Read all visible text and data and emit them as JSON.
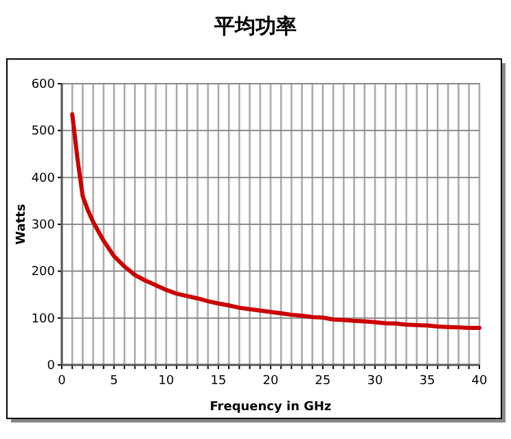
{
  "chart_data": {
    "type": "line",
    "title": "平均功率",
    "xlabel": "Frequency in GHz",
    "ylabel": "Watts",
    "x": [
      1,
      1.5,
      2,
      2.5,
      3,
      4,
      5,
      6,
      7,
      8,
      9,
      10,
      11,
      12,
      13,
      14,
      15,
      16,
      17,
      18,
      19,
      20,
      21,
      22,
      23,
      24,
      25,
      26,
      27,
      28,
      29,
      30,
      31,
      32,
      33,
      34,
      35,
      36,
      37,
      38,
      39,
      40
    ],
    "series": [
      {
        "color": "#cc0000",
        "values": [
          535,
          440,
          360,
          330,
          305,
          265,
          232,
          210,
          192,
          180,
          170,
          160,
          152,
          147,
          142,
          136,
          131,
          127,
          122,
          119,
          116,
          113,
          110,
          107,
          105,
          102,
          101,
          97,
          96,
          94,
          93,
          91,
          89,
          88,
          86,
          85,
          84,
          82,
          81,
          80,
          79,
          79
        ]
      }
    ],
    "xlim": [
      0,
      40
    ],
    "xticks": [
      0,
      {
        "value": 1,
        "label": null
      },
      {
        "value": 2,
        "label": null
      },
      {
        "value": 3,
        "label": null
      },
      {
        "value": 4,
        "label": null
      },
      5,
      {
        "value": 6,
        "label": null
      },
      {
        "value": 7,
        "label": null
      },
      {
        "value": 8,
        "label": null
      },
      {
        "value": 9,
        "label": null
      },
      10,
      {
        "value": 11,
        "label": null
      },
      {
        "value": 12,
        "label": null
      },
      {
        "value": 13,
        "label": null
      },
      {
        "value": 14,
        "label": null
      },
      15,
      {
        "value": 16,
        "label": null
      },
      {
        "value": 17,
        "label": null
      },
      {
        "value": 18,
        "label": null
      },
      {
        "value": 19,
        "label": null
      },
      20,
      {
        "value": 21,
        "label": null
      },
      {
        "value": 22,
        "label": null
      },
      {
        "value": 23,
        "label": null
      },
      {
        "value": 24,
        "label": null
      },
      25,
      {
        "value": 26,
        "label": null
      },
      {
        "value": 27,
        "label": null
      },
      {
        "value": 28,
        "label": null
      },
      {
        "value": 29,
        "label": null
      },
      30,
      {
        "value": 31,
        "label": null
      },
      {
        "value": 32,
        "label": null
      },
      {
        "value": 33,
        "label": null
      },
      {
        "value": 34,
        "label": null
      },
      35,
      {
        "value": 36,
        "label": null
      },
      {
        "value": 37,
        "label": null
      },
      {
        "value": 38,
        "label": null
      },
      {
        "value": 39,
        "label": null
      },
      40
    ],
    "ylim": [
      0,
      600
    ],
    "yticks": [
      0,
      100,
      200,
      300,
      400,
      500,
      600
    ],
    "grid": true,
    "marker": "none",
    "line_style": "solid"
  }
}
